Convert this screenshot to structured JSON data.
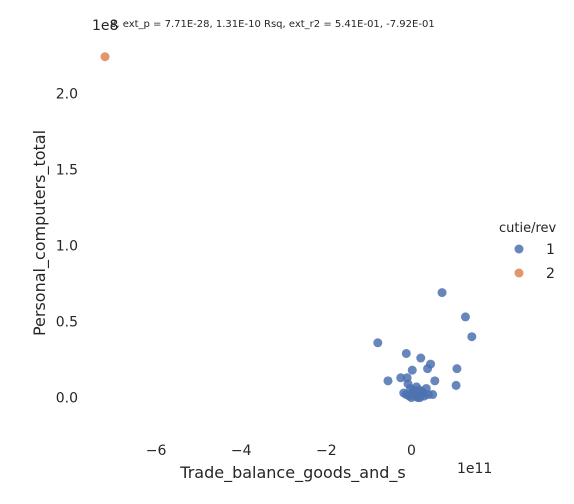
{
  "chart_data": {
    "type": "scatter",
    "title": "8, ext_p = 7.71E-28, 1.31E-10 Rsq, ext_r2 = 5.41E-01, -7.92E-01",
    "xlabel": "Trade_balance_goods_and_s",
    "ylabel": "Personal_computers_total",
    "x_offset_text": "1e11",
    "y_offset_text": "1e8",
    "xlim": [
      -7.6,
      1.8
    ],
    "ylim": [
      -0.2,
      2.35
    ],
    "x_ticks": [
      {
        "v": -6,
        "label": "−6"
      },
      {
        "v": -4,
        "label": "−4"
      },
      {
        "v": -2,
        "label": "−2"
      },
      {
        "v": 0,
        "label": "0"
      }
    ],
    "y_ticks": [
      {
        "v": 0.0,
        "label": "0.0"
      },
      {
        "v": 0.5,
        "label": "0.5"
      },
      {
        "v": 1.0,
        "label": "1.0"
      },
      {
        "v": 1.5,
        "label": "1.5"
      },
      {
        "v": 2.0,
        "label": "2.0"
      }
    ],
    "legend": {
      "title": "cutie/rev",
      "position": "right"
    },
    "series": [
      {
        "name": "1",
        "color": "#4c72b0",
        "points": [
          [
            0.72,
            0.69
          ],
          [
            1.27,
            0.53
          ],
          [
            1.42,
            0.4
          ],
          [
            -0.79,
            0.36
          ],
          [
            -0.12,
            0.29
          ],
          [
            0.22,
            0.26
          ],
          [
            0.45,
            0.22
          ],
          [
            1.07,
            0.19
          ],
          [
            0.38,
            0.19
          ],
          [
            0.02,
            0.18
          ],
          [
            -0.25,
            0.13
          ],
          [
            -0.1,
            0.13
          ],
          [
            -0.55,
            0.11
          ],
          [
            0.55,
            0.11
          ],
          [
            1.05,
            0.08
          ],
          [
            -0.08,
            0.09
          ],
          [
            0.12,
            0.07
          ],
          [
            0.35,
            0.06
          ],
          [
            0.05,
            0.05
          ],
          [
            0.25,
            0.04
          ],
          [
            -0.18,
            0.03
          ],
          [
            0.5,
            0.02
          ],
          [
            0.08,
            0.02
          ],
          [
            -0.05,
            0.01
          ],
          [
            0.15,
            0.0
          ],
          [
            0.3,
            0.01
          ],
          [
            0.0,
            0.0
          ],
          [
            0.2,
            0.0
          ],
          [
            -0.12,
            0.02
          ],
          [
            0.4,
            0.02
          ],
          [
            0.1,
            0.01
          ],
          [
            0.02,
            0.03
          ],
          [
            0.28,
            0.03
          ],
          [
            -0.02,
            0.06
          ],
          [
            0.18,
            0.05
          ]
        ]
      },
      {
        "name": "2",
        "color": "#dd8452",
        "points": [
          [
            -7.2,
            2.24
          ]
        ]
      }
    ]
  }
}
